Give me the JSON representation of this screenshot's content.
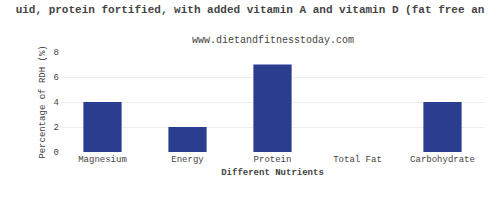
{
  "chart_data": {
    "type": "bar",
    "title": "uid, protein fortified, with added vitamin A and vitamin D (fat free an",
    "subtitle": "www.dietandfitnesstoday.com",
    "xlabel": "Different Nutrients",
    "ylabel": "Percentage of RDH (%)",
    "categories": [
      "Magnesium",
      "Energy",
      "Protein",
      "Total Fat",
      "Carbohydrate"
    ],
    "values": [
      4.0,
      2.0,
      7.0,
      0.0,
      4.0
    ],
    "color": "#2b3d8f",
    "ylim": [
      0,
      8
    ],
    "yticks": [
      0,
      2,
      4,
      6,
      8
    ],
    "grid": true
  }
}
